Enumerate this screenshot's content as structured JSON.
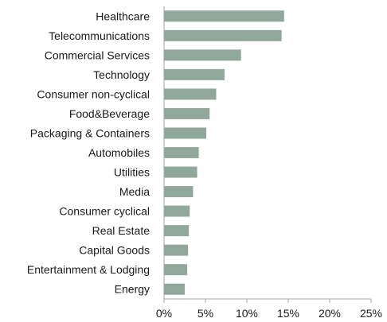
{
  "chart_data": {
    "type": "bar",
    "orientation": "horizontal",
    "categories": [
      "Healthcare",
      "Telecommunications",
      "Commercial Services",
      "Technology",
      "Consumer non-cyclical",
      "Food&Beverage",
      "Packaging & Containers",
      "Automobiles",
      "Utilities",
      "Media",
      "Consumer cyclical",
      "Real Estate",
      "Capital Goods",
      "Entertainment & Lodging",
      "Energy"
    ],
    "values": [
      14.5,
      14.2,
      9.3,
      7.3,
      6.3,
      5.5,
      5.1,
      4.2,
      4.0,
      3.5,
      3.1,
      3.0,
      2.9,
      2.8,
      2.5
    ],
    "title": "",
    "xlabel": "",
    "ylabel": "",
    "xlim": [
      0,
      25
    ],
    "xticks": [
      0,
      5,
      10,
      15,
      20,
      25
    ],
    "xtick_labels": [
      "0%",
      "5%",
      "10%",
      "15%",
      "20%",
      "25%"
    ],
    "grid": false,
    "legend": "none",
    "bar_color": "#8fa89b",
    "axis_color": "#a6a6a6"
  }
}
